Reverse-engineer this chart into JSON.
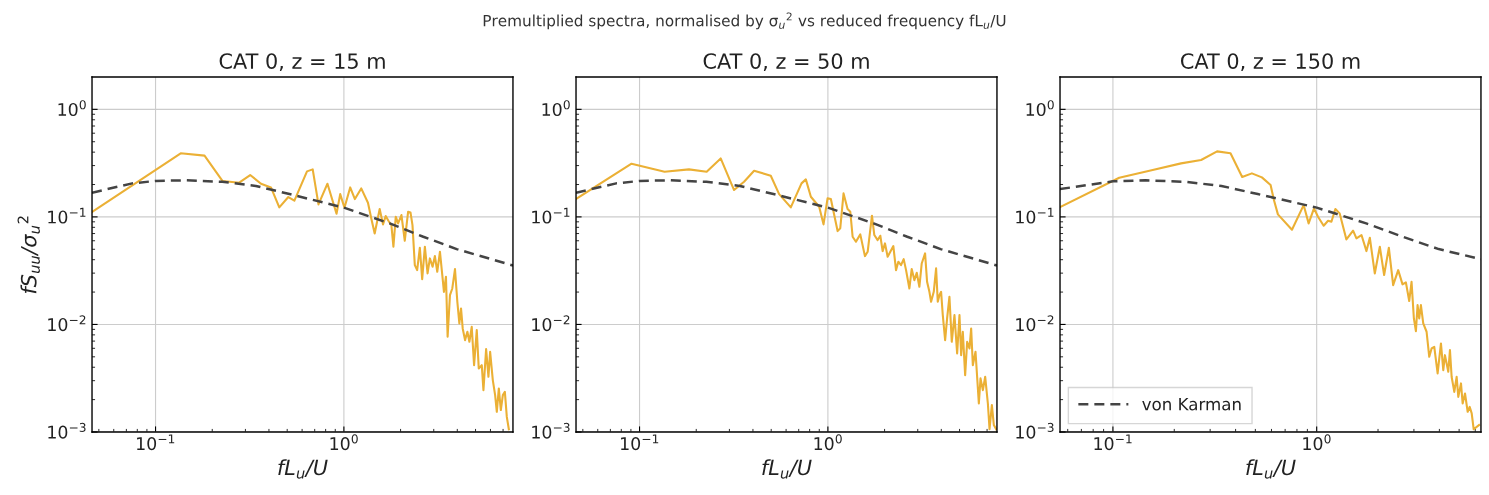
{
  "chart_data": [
    {
      "type": "line",
      "log": "xy",
      "grid": true,
      "title": "CAT 0, z = 15 m",
      "xlabel": "fL$_{u}$/U",
      "ylabel": "fS$_{uu}$/σ$_{u}$$^{2}$",
      "annotations": [
        "Premultiplied spectra, normalised by σ$_{u}$$^{2}$ vs reduced frequency fL$_{u}$/U"
      ],
      "xlim": [
        0.046,
        7.9
      ],
      "ylim": [
        0.001,
        2
      ],
      "xticks": [
        {
          "value": 0.05,
          "label": null
        },
        {
          "value": 0.06,
          "label": null
        },
        {
          "value": 0.07,
          "label": null
        },
        {
          "value": 0.08,
          "label": null
        },
        {
          "value": 0.09,
          "label": null
        },
        {
          "value": 0.1,
          "label": "10$^{−1}$"
        },
        {
          "value": 0.2,
          "label": null
        },
        {
          "value": 0.3,
          "label": null
        },
        {
          "value": 0.4,
          "label": null
        },
        {
          "value": 0.5,
          "label": null
        },
        {
          "value": 0.6,
          "label": null
        },
        {
          "value": 0.7,
          "label": null
        },
        {
          "value": 0.8,
          "label": null
        },
        {
          "value": 0.9,
          "label": null
        },
        {
          "value": 1,
          "label": "10$^{0}$"
        },
        {
          "value": 2,
          "label": null
        },
        {
          "value": 3,
          "label": null
        },
        {
          "value": 4,
          "label": null
        },
        {
          "value": 5,
          "label": null
        },
        {
          "value": 6,
          "label": null
        },
        {
          "value": 7,
          "label": null
        }
      ],
      "yticks": [
        {
          "value": 0.001,
          "label": "10$^{−3}$"
        },
        {
          "value": 0.002,
          "label": null
        },
        {
          "value": 0.003,
          "label": null
        },
        {
          "value": 0.004,
          "label": null
        },
        {
          "value": 0.005,
          "label": null
        },
        {
          "value": 0.006,
          "label": null
        },
        {
          "value": 0.007,
          "label": null
        },
        {
          "value": 0.008,
          "label": null
        },
        {
          "value": 0.009,
          "label": null
        },
        {
          "value": 0.01,
          "label": "10$^{−2}$"
        },
        {
          "value": 0.02,
          "label": null
        },
        {
          "value": 0.03,
          "label": null
        },
        {
          "value": 0.04,
          "label": null
        },
        {
          "value": 0.05,
          "label": null
        },
        {
          "value": 0.06,
          "label": null
        },
        {
          "value": 0.07,
          "label": null
        },
        {
          "value": 0.08,
          "label": null
        },
        {
          "value": 0.09,
          "label": null
        },
        {
          "value": 0.1,
          "label": "10$^{−1}$"
        },
        {
          "value": 0.2,
          "label": null
        },
        {
          "value": 0.3,
          "label": null
        },
        {
          "value": 0.4,
          "label": null
        },
        {
          "value": 0.5,
          "label": null
        },
        {
          "value": 0.6,
          "label": null
        },
        {
          "value": 0.7,
          "label": null
        },
        {
          "value": 0.8,
          "label": null
        },
        {
          "value": 0.9,
          "label": null
        },
        {
          "value": 1,
          "label": "10$^{0}$"
        }
      ],
      "series": [
        {
          "color": "#ebb035",
          "line_style": "solid",
          "x": [
            0.046,
            0.136,
            0.182,
            0.227,
            0.278,
            0.318,
            0.363,
            0.41,
            0.454,
            0.507,
            0.546,
            0.637,
            0.683,
            0.733,
            0.818,
            0.914,
            0.956,
            1.007,
            1.08,
            1.144,
            1.236,
            1.342,
            1.398,
            1.457,
            1.549,
            1.613,
            1.667,
            1.723,
            1.787,
            1.832,
            1.885,
            1.94,
            2.021,
            2.105,
            2.193,
            2.257,
            2.313,
            2.38,
            2.449,
            2.531,
            2.604,
            2.691,
            2.781,
            2.861,
            2.957,
            3.042,
            3.131,
            3.236,
            3.33,
            3.398,
            3.483,
            3.554,
            3.657,
            3.763,
            3.889,
            4.002,
            4.102,
            4.187,
            4.274,
            4.398,
            4.525,
            4.638,
            4.772,
            4.911,
            5.075,
            5.2,
            5.395,
            5.507,
            5.69,
            5.855,
            5.976,
            6.175,
            6.353,
            6.485,
            6.646,
            6.811,
            6.981,
            7.155,
            7.328,
            7.511
          ],
          "values": [
            0.111,
            0.39,
            0.371,
            0.2155,
            0.208,
            0.245,
            0.2035,
            0.188,
            0.1226,
            0.153,
            0.1414,
            0.265,
            0.2765,
            0.1307,
            0.2035,
            0.107,
            0.163,
            0.1217,
            0.188,
            0.1465,
            0.184,
            0.1354,
            0.0968,
            0.0702,
            0.1183,
            0.0852,
            0.1018,
            0.0921,
            0.0839,
            0.0528,
            0.1004,
            0.087,
            0.104,
            0.06,
            0.1117,
            0.11,
            0.0839,
            0.0356,
            0.032,
            0.0517,
            0.0264,
            0.0528,
            0.0298,
            0.0411,
            0.0344,
            0.0432,
            0.0309,
            0.0474,
            0.0288,
            0.0201,
            0.0278,
            0.00768,
            0.0187,
            0.0216,
            0.0327,
            0.01625,
            0.01022,
            0.01409,
            0.00918,
            0.00715,
            0.00855,
            0.0069,
            0.00951,
            0.00418,
            0.00886,
            0.0039,
            0.00418,
            0.00245,
            0.0059,
            0.00326,
            0.00557,
            0.00304,
            0.0022,
            0.00154,
            0.00254,
            0.0016,
            0.0022,
            0.00236,
            0.00138,
            0.00106
          ]
        },
        {
          "color": "#444444",
          "line_style": "dashed",
          "x": [
            0.046,
            0.0752,
            0.1,
            0.1445,
            0.226,
            0.341,
            0.514,
            1,
            1.75,
            2.64,
            3.97,
            7.9
          ],
          "values": [
            0.168,
            0.205,
            0.216,
            0.219,
            0.212,
            0.194,
            0.163,
            0.122,
            0.087,
            0.0654,
            0.0502,
            0.0353
          ]
        }
      ]
    },
    {
      "type": "line",
      "log": "xy",
      "grid": true,
      "title": "CAT 0, z = 50 m",
      "xlabel": "fL$_{u}$/U",
      "xlim": [
        0.046,
        7.9
      ],
      "ylim": [
        0.001,
        2
      ],
      "xticks": [
        {
          "value": 0.05,
          "label": null
        },
        {
          "value": 0.06,
          "label": null
        },
        {
          "value": 0.07,
          "label": null
        },
        {
          "value": 0.08,
          "label": null
        },
        {
          "value": 0.09,
          "label": null
        },
        {
          "value": 0.1,
          "label": "10$^{−1}$"
        },
        {
          "value": 0.2,
          "label": null
        },
        {
          "value": 0.3,
          "label": null
        },
        {
          "value": 0.4,
          "label": null
        },
        {
          "value": 0.5,
          "label": null
        },
        {
          "value": 0.6,
          "label": null
        },
        {
          "value": 0.7,
          "label": null
        },
        {
          "value": 0.8,
          "label": null
        },
        {
          "value": 0.9,
          "label": null
        },
        {
          "value": 1,
          "label": "10$^{0}$"
        },
        {
          "value": 2,
          "label": null
        },
        {
          "value": 3,
          "label": null
        },
        {
          "value": 4,
          "label": null
        },
        {
          "value": 5,
          "label": null
        },
        {
          "value": 6,
          "label": null
        },
        {
          "value": 7,
          "label": null
        }
      ],
      "yticks": [
        {
          "value": 0.001,
          "label": "10$^{−3}$"
        },
        {
          "value": 0.002,
          "label": null
        },
        {
          "value": 0.003,
          "label": null
        },
        {
          "value": 0.004,
          "label": null
        },
        {
          "value": 0.005,
          "label": null
        },
        {
          "value": 0.006,
          "label": null
        },
        {
          "value": 0.007,
          "label": null
        },
        {
          "value": 0.008,
          "label": null
        },
        {
          "value": 0.009,
          "label": null
        },
        {
          "value": 0.01,
          "label": "10$^{−2}$"
        },
        {
          "value": 0.02,
          "label": null
        },
        {
          "value": 0.03,
          "label": null
        },
        {
          "value": 0.04,
          "label": null
        },
        {
          "value": 0.05,
          "label": null
        },
        {
          "value": 0.06,
          "label": null
        },
        {
          "value": 0.07,
          "label": null
        },
        {
          "value": 0.08,
          "label": null
        },
        {
          "value": 0.09,
          "label": null
        },
        {
          "value": 0.1,
          "label": "10$^{−1}$"
        },
        {
          "value": 0.2,
          "label": null
        },
        {
          "value": 0.3,
          "label": null
        },
        {
          "value": 0.4,
          "label": null
        },
        {
          "value": 0.5,
          "label": null
        },
        {
          "value": 0.6,
          "label": null
        },
        {
          "value": 0.7,
          "label": null
        },
        {
          "value": 0.8,
          "label": null
        },
        {
          "value": 0.9,
          "label": null
        },
        {
          "value": 1,
          "label": "10$^{0}$"
        }
      ],
      "series": [
        {
          "color": "#ebb035",
          "line_style": "solid",
          "x": [
            0.046,
            0.0907,
            0.1358,
            0.183,
            0.2272,
            0.2697,
            0.3176,
            0.3589,
            0.4057,
            0.4975,
            0.551,
            0.6355,
            0.7244,
            0.7638,
            0.8121,
            0.899,
            0.948,
            0.996,
            1.037,
            1.126,
            1.163,
            1.211,
            1.272,
            1.315,
            1.353,
            1.409,
            1.486,
            1.573,
            1.626,
            1.714,
            1.764,
            1.837,
            1.898,
            1.953,
            2.01,
            2.076,
            2.145,
            2.226,
            2.3,
            2.366,
            2.445,
            2.526,
            2.6,
            2.708,
            2.786,
            2.879,
            2.963,
            3.06,
            3.149,
            3.281,
            3.362,
            3.459,
            3.531,
            3.648,
            3.754,
            3.831,
            3.91,
            3.991,
            4.074,
            4.192,
            4.295,
            4.419,
            4.547,
            4.699,
            4.855,
            4.996,
            5.099,
            5.204,
            5.355,
            5.488,
            5.647,
            5.763,
            5.882,
            6.078,
            6.331,
            6.462,
            6.649,
            6.842,
            7.069,
            7.215,
            7.424,
            7.606,
            7.826
          ],
          "values": [
            0.1465,
            0.3123,
            0.2631,
            0.2765,
            0.2631,
            0.35,
            0.1777,
            0.2124,
            0.2688,
            0.2415,
            0.163,
            0.1226,
            0.205,
            0.2233,
            0.154,
            0.1243,
            0.0852,
            0.1486,
            0.1465,
            0.0738,
            0.0782,
            0.1654,
            0.1183,
            0.1117,
            0.0654,
            0.0587,
            0.0688,
            0.0432,
            0.0474,
            0.1025,
            0.0678,
            0.0609,
            0.0668,
            0.0481,
            0.0567,
            0.0426,
            0.0474,
            0.0535,
            0.032,
            0.0383,
            0.0356,
            0.0405,
            0.032,
            0.0216,
            0.0327,
            0.0258,
            0.0302,
            0.0224,
            0.0369,
            0.0458,
            0.0249,
            0.0201,
            0.01625,
            0.0201,
            0.0332,
            0.01625,
            0.0187,
            0.0201,
            0.0122,
            0.00715,
            0.01137,
            0.0181,
            0.0069,
            0.0122,
            0.00537,
            0.0122,
            0.00518,
            0.00855,
            0.00338,
            0.0069,
            0.00598,
            0.00918,
            0.00418,
            0.00557,
            0.00184,
            0.00315,
            0.00245,
            0.00326,
            0.00184,
            0.00106,
            0.00178,
            0.00116,
            0.00106
          ]
        },
        {
          "color": "#444444",
          "line_style": "dashed",
          "x": [
            0.046,
            0.0752,
            0.1,
            0.1445,
            0.226,
            0.341,
            0.514,
            1,
            1.75,
            2.64,
            3.97,
            7.9
          ],
          "values": [
            0.168,
            0.205,
            0.216,
            0.219,
            0.212,
            0.194,
            0.163,
            0.122,
            0.087,
            0.0654,
            0.0502,
            0.0353
          ]
        }
      ]
    },
    {
      "type": "line",
      "log": "xy",
      "grid": true,
      "legend": "bottom left",
      "title": "CAT 0, z = 150 m",
      "xlabel": "fL$_{u}$/U",
      "xlim": [
        0.055,
        6.4
      ],
      "ylim": [
        0.001,
        2
      ],
      "xticks": [
        {
          "value": 0.06,
          "label": null
        },
        {
          "value": 0.07,
          "label": null
        },
        {
          "value": 0.08,
          "label": null
        },
        {
          "value": 0.09,
          "label": null
        },
        {
          "value": 0.1,
          "label": "10$^{−1}$"
        },
        {
          "value": 0.2,
          "label": null
        },
        {
          "value": 0.3,
          "label": null
        },
        {
          "value": 0.4,
          "label": null
        },
        {
          "value": 0.5,
          "label": null
        },
        {
          "value": 0.6,
          "label": null
        },
        {
          "value": 0.7,
          "label": null
        },
        {
          "value": 0.8,
          "label": null
        },
        {
          "value": 0.9,
          "label": null
        },
        {
          "value": 1,
          "label": "10$^{0}$"
        },
        {
          "value": 2,
          "label": null
        },
        {
          "value": 3,
          "label": null
        },
        {
          "value": 4,
          "label": null
        },
        {
          "value": 5,
          "label": null
        },
        {
          "value": 6,
          "label": null
        }
      ],
      "yticks": [
        {
          "value": 0.001,
          "label": "10$^{−3}$"
        },
        {
          "value": 0.002,
          "label": null
        },
        {
          "value": 0.003,
          "label": null
        },
        {
          "value": 0.004,
          "label": null
        },
        {
          "value": 0.005,
          "label": null
        },
        {
          "value": 0.006,
          "label": null
        },
        {
          "value": 0.007,
          "label": null
        },
        {
          "value": 0.008,
          "label": null
        },
        {
          "value": 0.009,
          "label": null
        },
        {
          "value": 0.01,
          "label": "10$^{−2}$"
        },
        {
          "value": 0.02,
          "label": null
        },
        {
          "value": 0.03,
          "label": null
        },
        {
          "value": 0.04,
          "label": null
        },
        {
          "value": 0.05,
          "label": null
        },
        {
          "value": 0.06,
          "label": null
        },
        {
          "value": 0.07,
          "label": null
        },
        {
          "value": 0.08,
          "label": null
        },
        {
          "value": 0.09,
          "label": null
        },
        {
          "value": 0.1,
          "label": "10$^{−1}$"
        },
        {
          "value": 0.2,
          "label": null
        },
        {
          "value": 0.3,
          "label": null
        },
        {
          "value": 0.4,
          "label": null
        },
        {
          "value": 0.5,
          "label": null
        },
        {
          "value": 0.6,
          "label": null
        },
        {
          "value": 0.7,
          "label": null
        },
        {
          "value": 0.8,
          "label": null
        },
        {
          "value": 0.9,
          "label": null
        },
        {
          "value": 1,
          "label": "10$^{0}$"
        }
      ],
      "series": [
        {
          "color": "#ebb035",
          "line_style": "solid",
          "x": [
            0.055,
            0.1074,
            0.1567,
            0.216,
            0.2709,
            0.3246,
            0.3776,
            0.4309,
            0.4808,
            0.5384,
            0.594,
            0.6168,
            0.6452,
            0.7563,
            0.863,
            0.913,
            0.97,
            1.015,
            1.082,
            1.137,
            1.181,
            1.235,
            1.297,
            1.399,
            1.509,
            1.567,
            1.659,
            1.755,
            1.823,
            1.928,
            2.041,
            2.143,
            2.26,
            2.373,
            2.512,
            2.638,
            2.74,
            2.845,
            2.921,
            2.999,
            3.068,
            3.127,
            3.186,
            3.247,
            3.334,
            3.462,
            3.568,
            3.664,
            3.776,
            3.922,
            4.072,
            4.181,
            4.26,
            4.424,
            4.508,
            4.594,
            4.735,
            4.862,
            4.955,
            5.107,
            5.204,
            5.344,
            5.508,
            5.634,
            5.764,
            5.896,
            6.262
          ],
          "values": [
            0.1235,
            0.2314,
            0.2727,
            0.3145,
            0.3379,
            0.4069,
            0.39,
            0.2347,
            0.254,
            0.2331,
            0.1978,
            0.1434,
            0.1055,
            0.076,
            0.1288,
            0.087,
            0.12,
            0.1004,
            0.0828,
            0.0921,
            0.0902,
            0.1183,
            0.1078,
            0.0617,
            0.0744,
            0.0631,
            0.0678,
            0.0481,
            0.064,
            0.0298,
            0.0528,
            0.0288,
            0.0517,
            0.0232,
            0.032,
            0.0236,
            0.0246,
            0.0165,
            0.0249,
            0.01137,
            0.00867,
            0.01513,
            0.01137,
            0.01513,
            0.01022,
            0.00855,
            0.005,
            0.00598,
            0.0062,
            0.0035,
            0.00666,
            0.00376,
            0.00518,
            0.00363,
            0.00577,
            0.00326,
            0.00236,
            0.00326,
            0.00212,
            0.00283,
            0.00184,
            0.00228,
            0.00154,
            0.00171,
            0.00149,
            0.00106,
            0.00116
          ]
        },
        {
          "name": "von Karman",
          "color": "#444444",
          "line_style": "dashed",
          "x": [
            0.055,
            0.1,
            0.1445,
            0.226,
            0.341,
            0.514,
            1,
            1.75,
            2.64,
            3.97,
            6.4
          ],
          "values": [
            0.1815,
            0.214,
            0.219,
            0.212,
            0.194,
            0.163,
            0.122,
            0.087,
            0.0654,
            0.0502,
            0.0405
          ]
        }
      ]
    }
  ]
}
